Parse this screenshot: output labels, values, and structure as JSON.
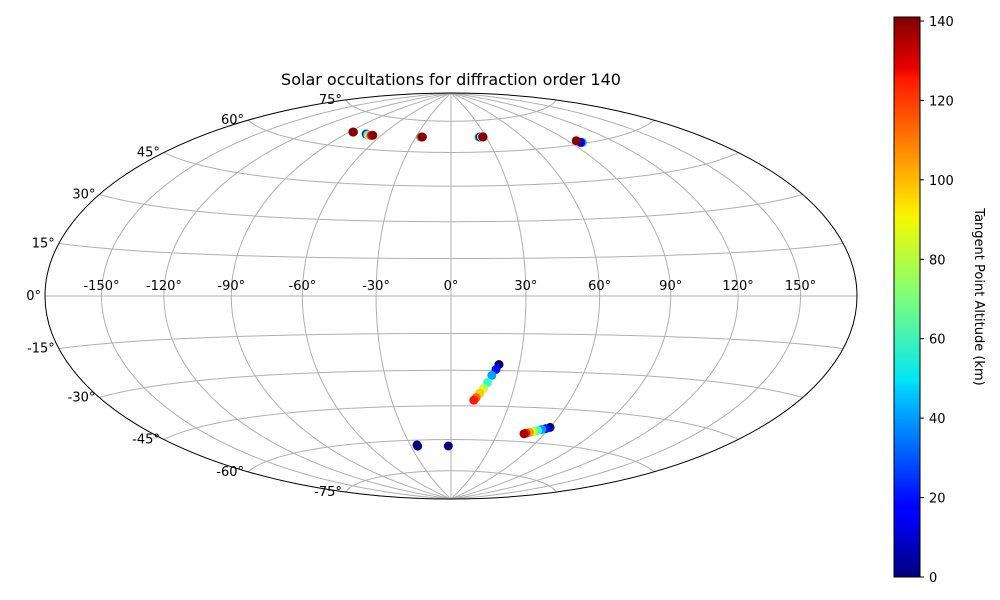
{
  "chart_data": {
    "type": "scatter",
    "projection": "hammer",
    "title": "Solar occultations for diffraction order 140",
    "grid": true,
    "longitude_ticks": [
      "-150°",
      "-120°",
      "-90°",
      "-60°",
      "-30°",
      "0°",
      "30°",
      "60°",
      "90°",
      "120°",
      "150°"
    ],
    "latitude_ticks": [
      "75°",
      "60°",
      "45°",
      "30°",
      "15°",
      "0°",
      "-15°",
      "-30°",
      "-45°",
      "-60°",
      "-75°"
    ],
    "colorbar": {
      "label": "Tangent Point Altitude (km)",
      "colormap": "jet",
      "range": [
        0,
        141
      ],
      "ticks": [
        "0",
        "20",
        "40",
        "60",
        "80",
        "100",
        "120",
        "140"
      ]
    },
    "series": [
      {
        "points": [
          {
            "lon": -87,
            "lat": 66.5,
            "alt": 135
          },
          {
            "lon": -86.5,
            "lat": 66.5,
            "alt": 140
          },
          {
            "lon": -74,
            "lat": 66.5,
            "alt": 30
          },
          {
            "lon": -73,
            "lat": 66.3,
            "alt": 15
          },
          {
            "lon": -72,
            "lat": 66.2,
            "alt": 40
          },
          {
            "lon": -71,
            "lat": 66.1,
            "alt": 60
          },
          {
            "lon": -70,
            "lat": 66.1,
            "alt": 80
          },
          {
            "lon": -69,
            "lat": 66.1,
            "alt": 100
          },
          {
            "lon": -68,
            "lat": 66.1,
            "alt": 120
          },
          {
            "lon": -67,
            "lat": 66.2,
            "alt": 140
          },
          {
            "lon": -26,
            "lat": 67,
            "alt": 40
          },
          {
            "lon": -25.5,
            "lat": 67,
            "alt": 100
          },
          {
            "lon": -25,
            "lat": 67,
            "alt": 130
          },
          {
            "lon": -24.5,
            "lat": 67,
            "alt": 140
          },
          {
            "lon": 24,
            "lat": 67,
            "alt": 40
          },
          {
            "lon": 25,
            "lat": 67,
            "alt": 15
          },
          {
            "lon": 26,
            "lat": 67,
            "alt": 80
          },
          {
            "lon": 27,
            "lat": 67,
            "alt": 130
          },
          {
            "lon": 27.5,
            "lat": 67,
            "alt": 140
          },
          {
            "lon": 98,
            "lat": 60.5,
            "alt": 40
          },
          {
            "lon": 97,
            "lat": 60.6,
            "alt": 10
          },
          {
            "lon": 96,
            "lat": 61.5,
            "alt": 140
          },
          {
            "lon": -25,
            "lat": -62.2,
            "alt": 5
          },
          {
            "lon": -25,
            "lat": -62.8,
            "alt": 0
          },
          {
            "lon": -2,
            "lat": -63,
            "alt": 0
          },
          {
            "lon": 60,
            "lat": -53,
            "alt": 0
          },
          {
            "lon": 58,
            "lat": -53.6,
            "alt": 20
          },
          {
            "lon": 56,
            "lat": -54.1,
            "alt": 40
          },
          {
            "lon": 54,
            "lat": -54.7,
            "alt": 60
          },
          {
            "lon": 52,
            "lat": -55.2,
            "alt": 80
          },
          {
            "lon": 50,
            "lat": -55.7,
            "alt": 100
          },
          {
            "lon": 48,
            "lat": -56.1,
            "alt": 120
          },
          {
            "lon": 47,
            "lat": -56.4,
            "alt": 135
          },
          {
            "lon": 21,
            "lat": -27.5,
            "alt": 0
          },
          {
            "lon": 20,
            "lat": -29.5,
            "alt": 20
          },
          {
            "lon": 18.5,
            "lat": -32,
            "alt": 40
          },
          {
            "lon": 17,
            "lat": -35,
            "alt": 60
          },
          {
            "lon": 15.5,
            "lat": -37.5,
            "alt": 80
          },
          {
            "lon": 14,
            "lat": -39.5,
            "alt": 95
          },
          {
            "lon": 12.5,
            "lat": -41.5,
            "alt": 110
          },
          {
            "lon": 11.5,
            "lat": -42.5,
            "alt": 120
          }
        ]
      }
    ]
  }
}
